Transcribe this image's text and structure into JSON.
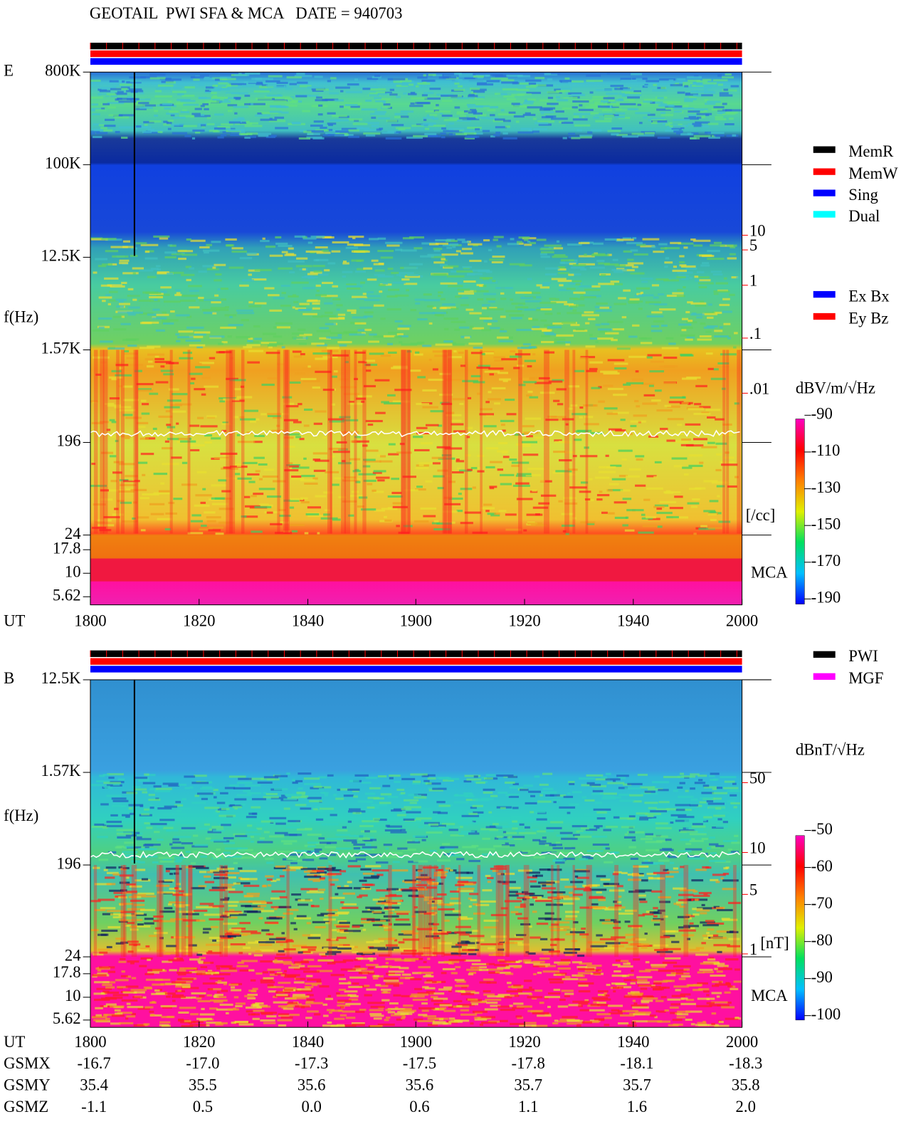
{
  "title": "GEOTAIL  PWI SFA & MCA   DATE = 940703",
  "ut_label": "UT",
  "freq_label": "f(Hz)",
  "ut_ticks": [
    "1800",
    "1820",
    "1840",
    "1900",
    "1920",
    "1940",
    "2000"
  ],
  "panels": [
    {
      "label": "E",
      "freq_ticks": [
        "800K",
        "100K",
        "12.5K",
        "1.57K",
        "196",
        "24",
        "17.8",
        "10",
        "5.62"
      ],
      "legend": [
        {
          "name": "MemR",
          "color": "#000000"
        },
        {
          "name": "MemW",
          "color": "#ff0000"
        },
        {
          "name": "Sing",
          "color": "#0000ff"
        },
        {
          "name": "Dual",
          "color": "#00ffff"
        }
      ],
      "legend2": [
        {
          "name": "Ex Bx",
          "color": "#0000ff"
        },
        {
          "name": "Ey Bz",
          "color": "#ff0000"
        }
      ],
      "unit": "dBV/m/√Hz",
      "clim": [
        -190,
        -90
      ],
      "cticks": [
        -90,
        -110,
        -130,
        -150,
        -170,
        -190
      ],
      "cmap": [
        "#0000ff",
        "#00c0ff",
        "#00e060",
        "#e0f000",
        "#ff8000",
        "#ff0000",
        "#ff00c0"
      ],
      "right_ticks": [
        "10",
        "5",
        "1",
        ".1",
        ".01"
      ],
      "right_unit": "[/cc]",
      "mca": "MCA"
    },
    {
      "label": "B",
      "freq_ticks": [
        "12.5K",
        "1.57K",
        "196",
        "24",
        "17.8",
        "10",
        "5.62"
      ],
      "legend": [
        {
          "name": "PWI",
          "color": "#000000"
        },
        {
          "name": "MGF",
          "color": "#ff00ff"
        }
      ],
      "legend2": [],
      "unit": "dBnT/√Hz",
      "clim": [
        -100,
        -50
      ],
      "cticks": [
        -50,
        -60,
        -70,
        -80,
        -90,
        -100
      ],
      "cmap": [
        "#0000ff",
        "#00c0ff",
        "#00e060",
        "#e0f000",
        "#ff8000",
        "#ff0000",
        "#ff00c0"
      ],
      "right_ticks": [
        "50",
        "10",
        "5",
        "1"
      ],
      "right_unit": "[nT]",
      "mca": "MCA"
    }
  ],
  "orbit": {
    "rows": [
      {
        "label": "GSMX",
        "values": [
          "-16.7",
          "-17.0",
          "-17.3",
          "-17.5",
          "-17.8",
          "-18.1",
          "-18.3"
        ]
      },
      {
        "label": "GSMY",
        "values": [
          "35.4",
          "35.5",
          "35.6",
          "35.6",
          "35.7",
          "35.7",
          "35.8"
        ]
      },
      {
        "label": "GSMZ",
        "values": [
          "-1.1",
          "0.5",
          "0.0",
          "0.6",
          "1.1",
          "1.6",
          "2.0"
        ]
      }
    ]
  }
}
